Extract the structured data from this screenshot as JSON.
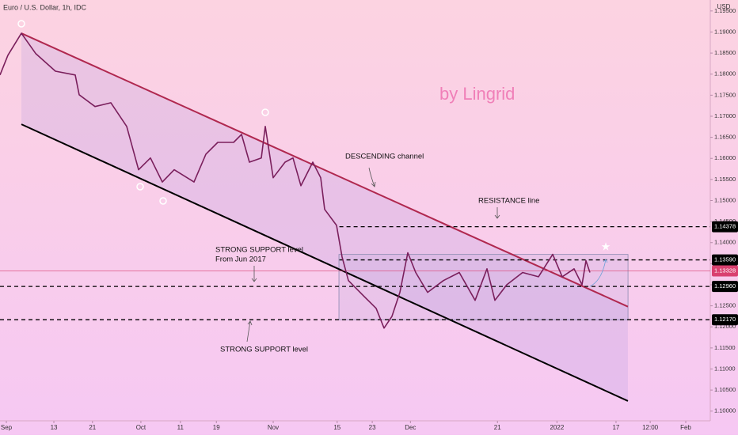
{
  "chart_data": {
    "type": "line",
    "title": "Euro / U.S. Dollar, 1h, IDC",
    "y_axis_label": "USD",
    "color": "#7a1f5c",
    "x": [
      -1.43,
      0.36,
      3.39,
      6.6,
      11.06,
      15.51,
      16.41,
      19.97,
      23.54,
      27.1,
      29.78,
      32.45,
      35.13,
      37.8,
      42.26,
      44.94,
      47.61,
      51.18,
      52.96,
      54.74,
      57.42,
      58.31,
      60.09,
      62.77,
      64.55,
      66.33,
      69.01,
      70.79,
      71.68,
      74.36,
      75.61,
      77.03,
      80.6,
      83.27,
      85.06,
      86.84,
      88.62,
      90.41,
      92.19,
      94.86,
      98.43,
      102.0,
      105.56,
      108.24,
      110.02,
      112.7,
      116.26,
      119.83,
      123.04,
      125.18,
      127.85,
      129.64,
      130.53,
      131.42
    ],
    "values": [
      1.1798,
      1.1845,
      1.1897,
      1.1849,
      1.1807,
      1.1798,
      1.1751,
      1.1723,
      1.1732,
      1.1676,
      1.1573,
      1.1601,
      1.1544,
      1.1573,
      1.1544,
      1.161,
      1.1638,
      1.1638,
      1.1657,
      1.1591,
      1.1601,
      1.1676,
      1.1554,
      1.1591,
      1.1601,
      1.1535,
      1.1591,
      1.1554,
      1.1479,
      1.1441,
      1.1366,
      1.131,
      1.1272,
      1.1244,
      1.1197,
      1.1225,
      1.1282,
      1.1376,
      1.1329,
      1.1282,
      1.131,
      1.1329,
      1.1263,
      1.1338,
      1.1263,
      1.13,
      1.1329,
      1.1319,
      1.1372,
      1.1319,
      1.1338,
      1.13,
      1.1357,
      1.1329
    ],
    "xlim": [
      -1.43,
      158.53
    ],
    "ylim": [
      1.0977,
      1.1976
    ],
    "xticks": [
      {
        "value": 0,
        "label": "Sep"
      },
      {
        "value": 10.7,
        "label": "13"
      },
      {
        "value": 19.4,
        "label": "21"
      },
      {
        "value": 30.3,
        "label": "Oct"
      },
      {
        "value": 39.2,
        "label": "11"
      },
      {
        "value": 47.3,
        "label": "19"
      },
      {
        "value": 60.1,
        "label": "Nov"
      },
      {
        "value": 74.5,
        "label": "15"
      },
      {
        "value": 82.4,
        "label": "23"
      },
      {
        "value": 91.0,
        "label": "Dec"
      },
      {
        "value": 110.6,
        "label": "21"
      },
      {
        "value": 124.0,
        "label": "2022"
      },
      {
        "value": 137.3,
        "label": "17"
      },
      {
        "value": 145.0,
        "label": "12:00"
      },
      {
        "value": 153.0,
        "label": "Feb"
      }
    ],
    "yticks": [
      {
        "value": 1.195,
        "label": "1.19500"
      },
      {
        "value": 1.19,
        "label": "1.19000"
      },
      {
        "value": 1.185,
        "label": "1.18500"
      },
      {
        "value": 1.18,
        "label": "1.18000"
      },
      {
        "value": 1.175,
        "label": "1.17500"
      },
      {
        "value": 1.17,
        "label": "1.17000"
      },
      {
        "value": 1.165,
        "label": "1.16500"
      },
      {
        "value": 1.16,
        "label": "1.16000"
      },
      {
        "value": 1.155,
        "label": "1.15500"
      },
      {
        "value": 1.15,
        "label": "1.15000"
      },
      {
        "value": 1.145,
        "label": "1.14500"
      },
      {
        "value": 1.14,
        "label": "1.14000"
      },
      {
        "value": 1.135,
        "label": "1.13500"
      },
      {
        "value": 1.13,
        "label": "1.13000"
      },
      {
        "value": 1.125,
        "label": "1.12500"
      },
      {
        "value": 1.12,
        "label": "1.12000"
      },
      {
        "value": 1.115,
        "label": "1.11500"
      },
      {
        "value": 1.11,
        "label": "1.11000"
      },
      {
        "value": 1.105,
        "label": "1.10500"
      },
      {
        "value": 1.1,
        "label": "1.10000"
      }
    ],
    "levels": [
      {
        "value": 1.14378,
        "from": 75,
        "color": "#000000",
        "dashed": true
      },
      {
        "value": 1.1359,
        "label": "1.13590",
        "from": 75,
        "color": "#000000",
        "dashed": true
      },
      {
        "value": 1.13328,
        "from": -1.43,
        "color": "#d9416f",
        "dashed": false
      },
      {
        "value": 1.1296,
        "label": "1.12960",
        "from": -1.43,
        "color": "#000000",
        "dashed": true
      },
      {
        "value": 1.1217,
        "label": "1.12170",
        "from": -1.43,
        "color": "#000000",
        "dashed": true
      }
    ],
    "channel": {
      "upper": {
        "x": [
          3.39,
          139.98
        ],
        "y": [
          1.1897,
          1.1248
        ],
        "color": "#b0284f"
      },
      "lower": {
        "x": [
          3.39,
          139.98
        ],
        "y": [
          1.1681,
          1.1024
        ],
        "color": "#000000"
      }
    },
    "range_box": {
      "x": [
        74.9,
        140.0
      ],
      "y": [
        1.1217,
        1.1372
      ]
    },
    "annotations": [
      "by Lingrid",
      "DESCENDING channel",
      "RESISTANCE line",
      "STRONG SUPPORT level",
      "From Jun 2017",
      "STRONG SUPPORT level"
    ]
  }
}
